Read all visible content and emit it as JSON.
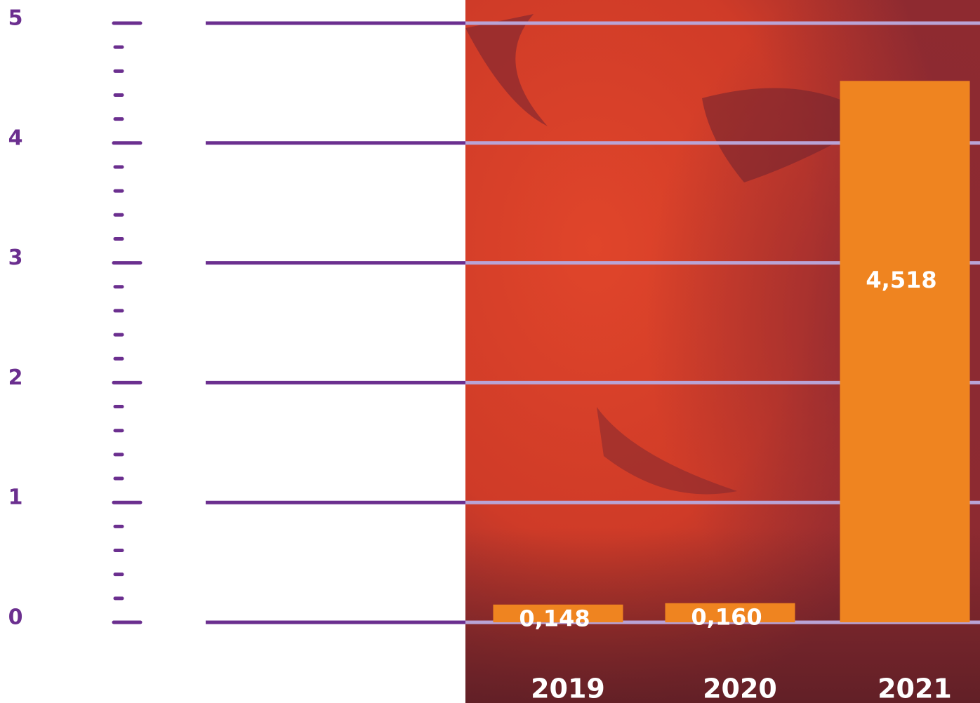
{
  "chart_data": {
    "type": "bar",
    "categories": [
      "2019",
      "2020",
      "2021"
    ],
    "values": [
      0.148,
      0.16,
      4.518
    ],
    "value_labels": [
      "0,148",
      "0,160",
      "4,518"
    ],
    "color": "#ef8420",
    "ylim": [
      0,
      5
    ],
    "yticks": [
      0,
      1,
      2,
      3,
      4,
      5
    ],
    "minor_yticks": [
      0.2,
      0.4,
      0.6,
      0.8,
      1.2,
      1.4,
      1.6,
      1.8,
      2.2,
      2.4,
      2.6,
      2.8,
      3.2,
      3.4,
      3.6,
      3.8,
      4.2,
      4.4,
      4.6,
      4.8
    ],
    "grid": true
  }
}
